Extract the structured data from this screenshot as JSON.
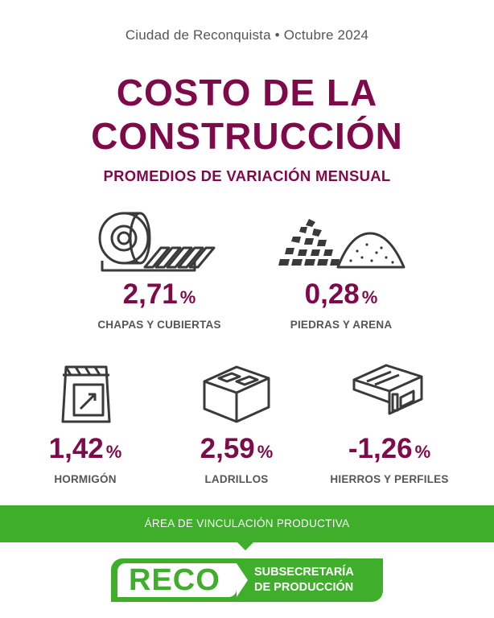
{
  "header": {
    "city_date": "Ciudad de Reconquista • Octubre 2024",
    "title_line1": "COSTO DE LA",
    "title_line2": "CONSTRUCCIÓN",
    "subtitle": "PROMEDIOS DE VARIACIÓN MENSUAL"
  },
  "items": [
    {
      "value": "2,71",
      "unit": "%",
      "label": "CHAPAS Y CUBIERTAS",
      "icon": "sheet-metal-roll-icon"
    },
    {
      "value": "0,28",
      "unit": "%",
      "label": "PIEDRAS Y ARENA",
      "icon": "stones-sand-icon"
    },
    {
      "value": "1,42",
      "unit": "%",
      "label": "HORMIGÓN",
      "icon": "cement-bag-icon"
    },
    {
      "value": "2,59",
      "unit": "%",
      "label": "LADRILLOS",
      "icon": "brick-block-icon"
    },
    {
      "value": "-1,26",
      "unit": "%",
      "label": "HIERROS Y PERFILES",
      "icon": "steel-beam-icon"
    }
  ],
  "footer": {
    "band_text": "ÁREA DE VINCULACIÓN PRODUCTIVA",
    "logo_text": "RECO",
    "sec_line1": "SUBSECRETARÍA",
    "sec_line2": "DE PRODUCCIÓN"
  },
  "colors": {
    "primary": "#7e0a4a",
    "green": "#3fae2a",
    "gray": "#555555"
  }
}
